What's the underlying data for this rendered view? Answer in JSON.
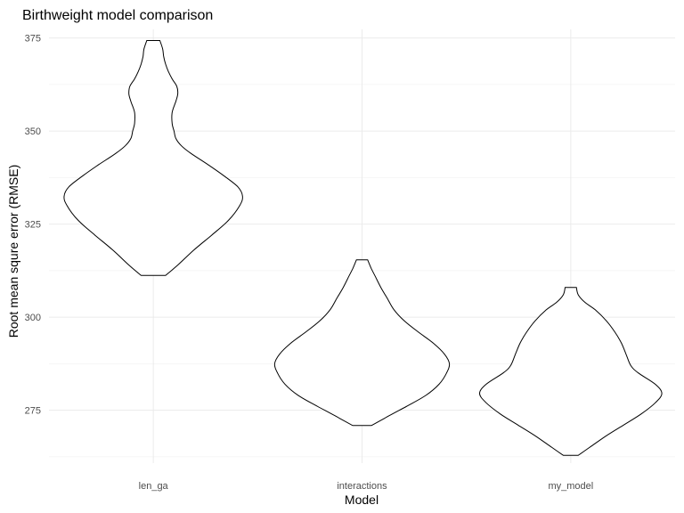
{
  "chart_data": {
    "type": "violin",
    "title": "Birthweight model comparison",
    "xlabel": "Model",
    "ylabel": "Root mean squre error (RMSE)",
    "categories": [
      "len_ga",
      "interactions",
      "my_model"
    ],
    "y_ticks": [
      275,
      300,
      325,
      350,
      375
    ],
    "ylim": [
      260.8,
      377.3
    ],
    "grid": true,
    "violins": [
      {
        "name": "len_ga",
        "profile": [
          [
            311.2,
            0.13
          ],
          [
            314,
            0.26
          ],
          [
            318,
            0.43
          ],
          [
            322,
            0.62
          ],
          [
            326,
            0.8
          ],
          [
            330,
            0.92
          ],
          [
            332.5,
            0.95
          ],
          [
            335,
            0.9
          ],
          [
            338,
            0.75
          ],
          [
            341,
            0.58
          ],
          [
            344,
            0.4
          ],
          [
            346,
            0.3
          ],
          [
            348,
            0.24
          ],
          [
            350,
            0.22
          ],
          [
            352,
            0.2
          ],
          [
            355,
            0.2
          ],
          [
            358,
            0.24
          ],
          [
            360,
            0.26
          ],
          [
            362,
            0.25
          ],
          [
            364,
            0.2
          ],
          [
            366,
            0.16
          ],
          [
            368,
            0.13
          ],
          [
            370,
            0.11
          ],
          [
            372,
            0.1
          ],
          [
            374.3,
            0.07
          ]
        ]
      },
      {
        "name": "interactions",
        "profile": [
          [
            270.9,
            0.1
          ],
          [
            273,
            0.25
          ],
          [
            276,
            0.47
          ],
          [
            279,
            0.68
          ],
          [
            282,
            0.82
          ],
          [
            285,
            0.9
          ],
          [
            287.5,
            0.93
          ],
          [
            290,
            0.88
          ],
          [
            293,
            0.76
          ],
          [
            296,
            0.6
          ],
          [
            299,
            0.45
          ],
          [
            302,
            0.34
          ],
          [
            305,
            0.27
          ],
          [
            308,
            0.2
          ],
          [
            311,
            0.14
          ],
          [
            313,
            0.1
          ],
          [
            315.4,
            0.06
          ]
        ]
      },
      {
        "name": "my_model",
        "profile": [
          [
            262.9,
            0.08
          ],
          [
            265,
            0.2
          ],
          [
            268,
            0.37
          ],
          [
            271,
            0.56
          ],
          [
            274,
            0.75
          ],
          [
            277,
            0.9
          ],
          [
            279.5,
            0.97
          ],
          [
            282,
            0.9
          ],
          [
            285,
            0.72
          ],
          [
            287,
            0.64
          ],
          [
            290,
            0.59
          ],
          [
            293,
            0.54
          ],
          [
            296,
            0.47
          ],
          [
            299,
            0.38
          ],
          [
            302,
            0.26
          ],
          [
            304,
            0.15
          ],
          [
            306,
            0.08
          ],
          [
            308,
            0.06
          ]
        ]
      }
    ]
  }
}
